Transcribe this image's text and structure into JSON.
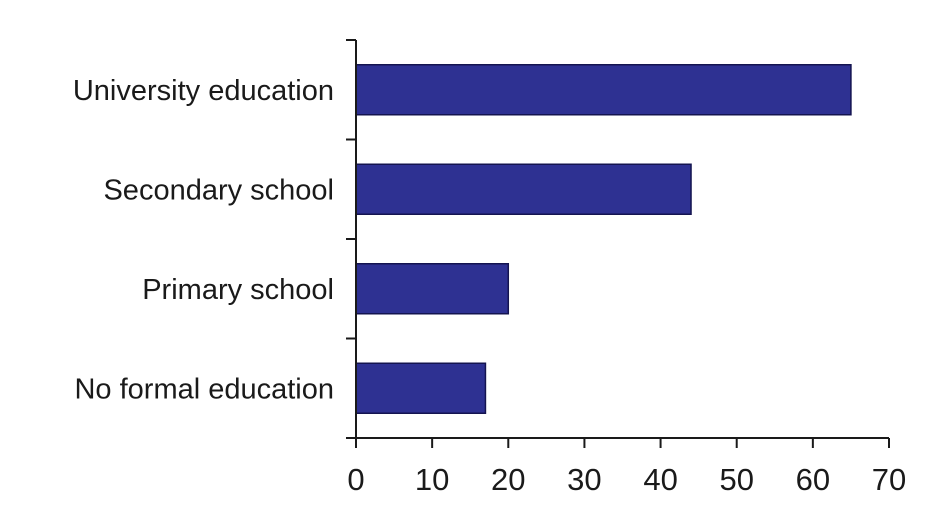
{
  "chart_data": {
    "type": "bar",
    "orientation": "horizontal",
    "categories": [
      "University education",
      "Secondary school",
      "Primary school",
      "No formal education"
    ],
    "values": [
      65,
      44,
      20,
      17
    ],
    "xlim": [
      0,
      70
    ],
    "xticks": [
      "0",
      "10",
      "20",
      "30",
      "40",
      "50",
      "60",
      "70"
    ],
    "title": "",
    "xlabel": "",
    "ylabel": "",
    "grid": false,
    "legend": "none",
    "bar_color": "#2e3192",
    "bar_edge_color": "#141450"
  }
}
